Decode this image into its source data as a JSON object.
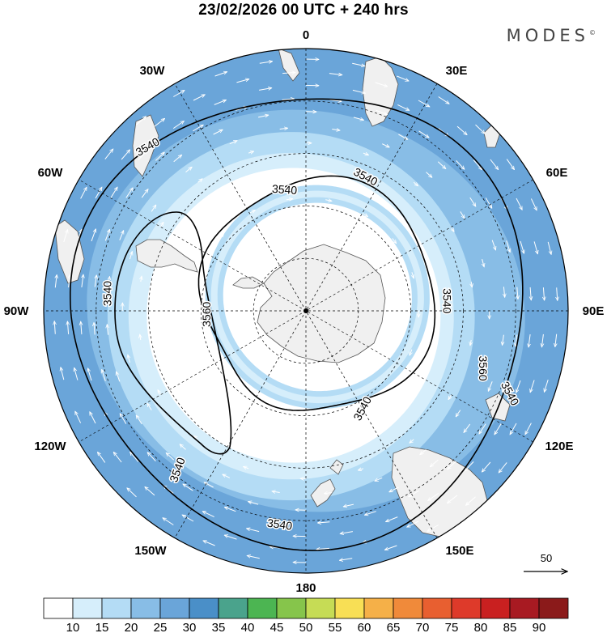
{
  "title": "23/02/2026  00 UTC  + 240 hrs",
  "brand": {
    "name": "MODES",
    "mark": "©"
  },
  "colors": {
    "band_outer": "#6aa5d9",
    "band_mid": "#88bde6",
    "band_light": "#b4dcf5",
    "band_pale": "#d6eefb",
    "land": "#f0f0f0",
    "coast": "#555555",
    "contour": "#000000",
    "grid": "#000000",
    "vector": "#ffffff"
  },
  "longitude_labels": [
    {
      "text": "0",
      "lon": 0
    },
    {
      "text": "30E",
      "lon": 30
    },
    {
      "text": "60E",
      "lon": 60
    },
    {
      "text": "90E",
      "lon": 90
    },
    {
      "text": "120E",
      "lon": 120
    },
    {
      "text": "150E",
      "lon": 150
    },
    {
      "text": "180",
      "lon": 180
    },
    {
      "text": "150W",
      "lon": -150
    },
    {
      "text": "120W",
      "lon": -120
    },
    {
      "text": "90W",
      "lon": -90
    },
    {
      "text": "60W",
      "lon": -60
    },
    {
      "text": "30W",
      "lon": -30
    }
  ],
  "contour_labels": [
    {
      "text": "3540",
      "angle_deg": 112,
      "r_frac": 0.84,
      "rot": 62
    },
    {
      "text": "3540",
      "angle_deg": 24,
      "r_frac": 0.56,
      "rot": 28
    },
    {
      "text": "3540",
      "angle_deg": 275,
      "r_frac": 0.76,
      "rot": -90
    },
    {
      "text": "3540",
      "angle_deg": 219,
      "r_frac": 0.78,
      "rot": -70
    },
    {
      "text": "3540",
      "angle_deg": 187,
      "r_frac": 0.82,
      "rot": 8
    },
    {
      "text": "3540",
      "angle_deg": 316,
      "r_frac": 0.87,
      "rot": -30
    },
    {
      "text": "3540",
      "angle_deg": 150,
      "r_frac": 0.43,
      "rot": -62
    },
    {
      "text": "3540",
      "angle_deg": 86,
      "r_frac": 0.54,
      "rot": 90
    },
    {
      "text": "3540",
      "angle_deg": 350,
      "r_frac": 0.47,
      "rot": 4
    },
    {
      "text": "3560",
      "angle_deg": 108,
      "r_frac": 0.71,
      "rot": 90
    },
    {
      "text": "3560",
      "angle_deg": 268,
      "r_frac": 0.38,
      "rot": -90
    }
  ],
  "vector_reference": {
    "label": "50"
  },
  "colorbar": {
    "colors": [
      "#ffffff",
      "#d6eefb",
      "#b4dcf5",
      "#88bde6",
      "#6aa5d9",
      "#4a8fc8",
      "#4aa38c",
      "#4cb552",
      "#86c54b",
      "#c6dc55",
      "#f8df55",
      "#f5b048",
      "#f08a3a",
      "#e85f30",
      "#de3a2a",
      "#c92020",
      "#a81a22",
      "#8b1a1a"
    ],
    "labels": [
      "10",
      "15",
      "20",
      "25",
      "30",
      "35",
      "40",
      "45",
      "50",
      "55",
      "60",
      "65",
      "70",
      "75",
      "80",
      "85",
      "90"
    ]
  }
}
